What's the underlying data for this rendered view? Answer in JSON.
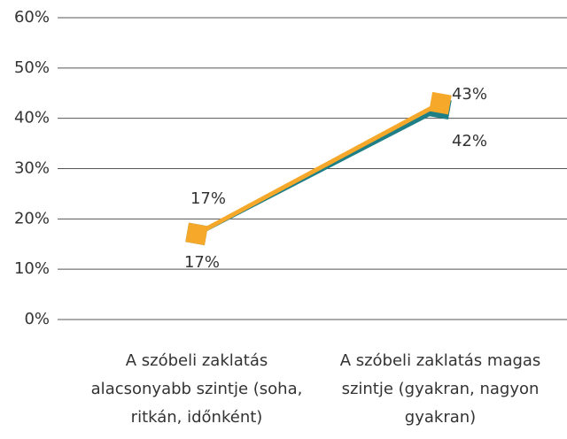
{
  "chart_data": {
    "type": "line",
    "categories": [
      "A szóbeli zaklatás alacsonyabb szintje (soha, ritkán, időnként)",
      "A szóbeli zaklatás magas szintje (gyakran, nagyon gyakran)"
    ],
    "series": [
      {
        "color": "#1f7f86",
        "values": [
          17,
          42
        ],
        "value_labels": [
          "17%",
          "42%"
        ]
      },
      {
        "color": "#f5a82a",
        "values": [
          17,
          43
        ],
        "value_labels": [
          "17%",
          "43%"
        ]
      }
    ],
    "ylim": [
      0,
      60
    ],
    "yticks": [
      {
        "value": 0,
        "label": "0%"
      },
      {
        "value": 10,
        "label": "10%"
      },
      {
        "value": 20,
        "label": "20%"
      },
      {
        "value": 30,
        "label": "30%"
      },
      {
        "value": 40,
        "label": "40%"
      },
      {
        "value": 50,
        "label": "50%"
      },
      {
        "value": 60,
        "label": "60%"
      }
    ],
    "grid": true
  }
}
